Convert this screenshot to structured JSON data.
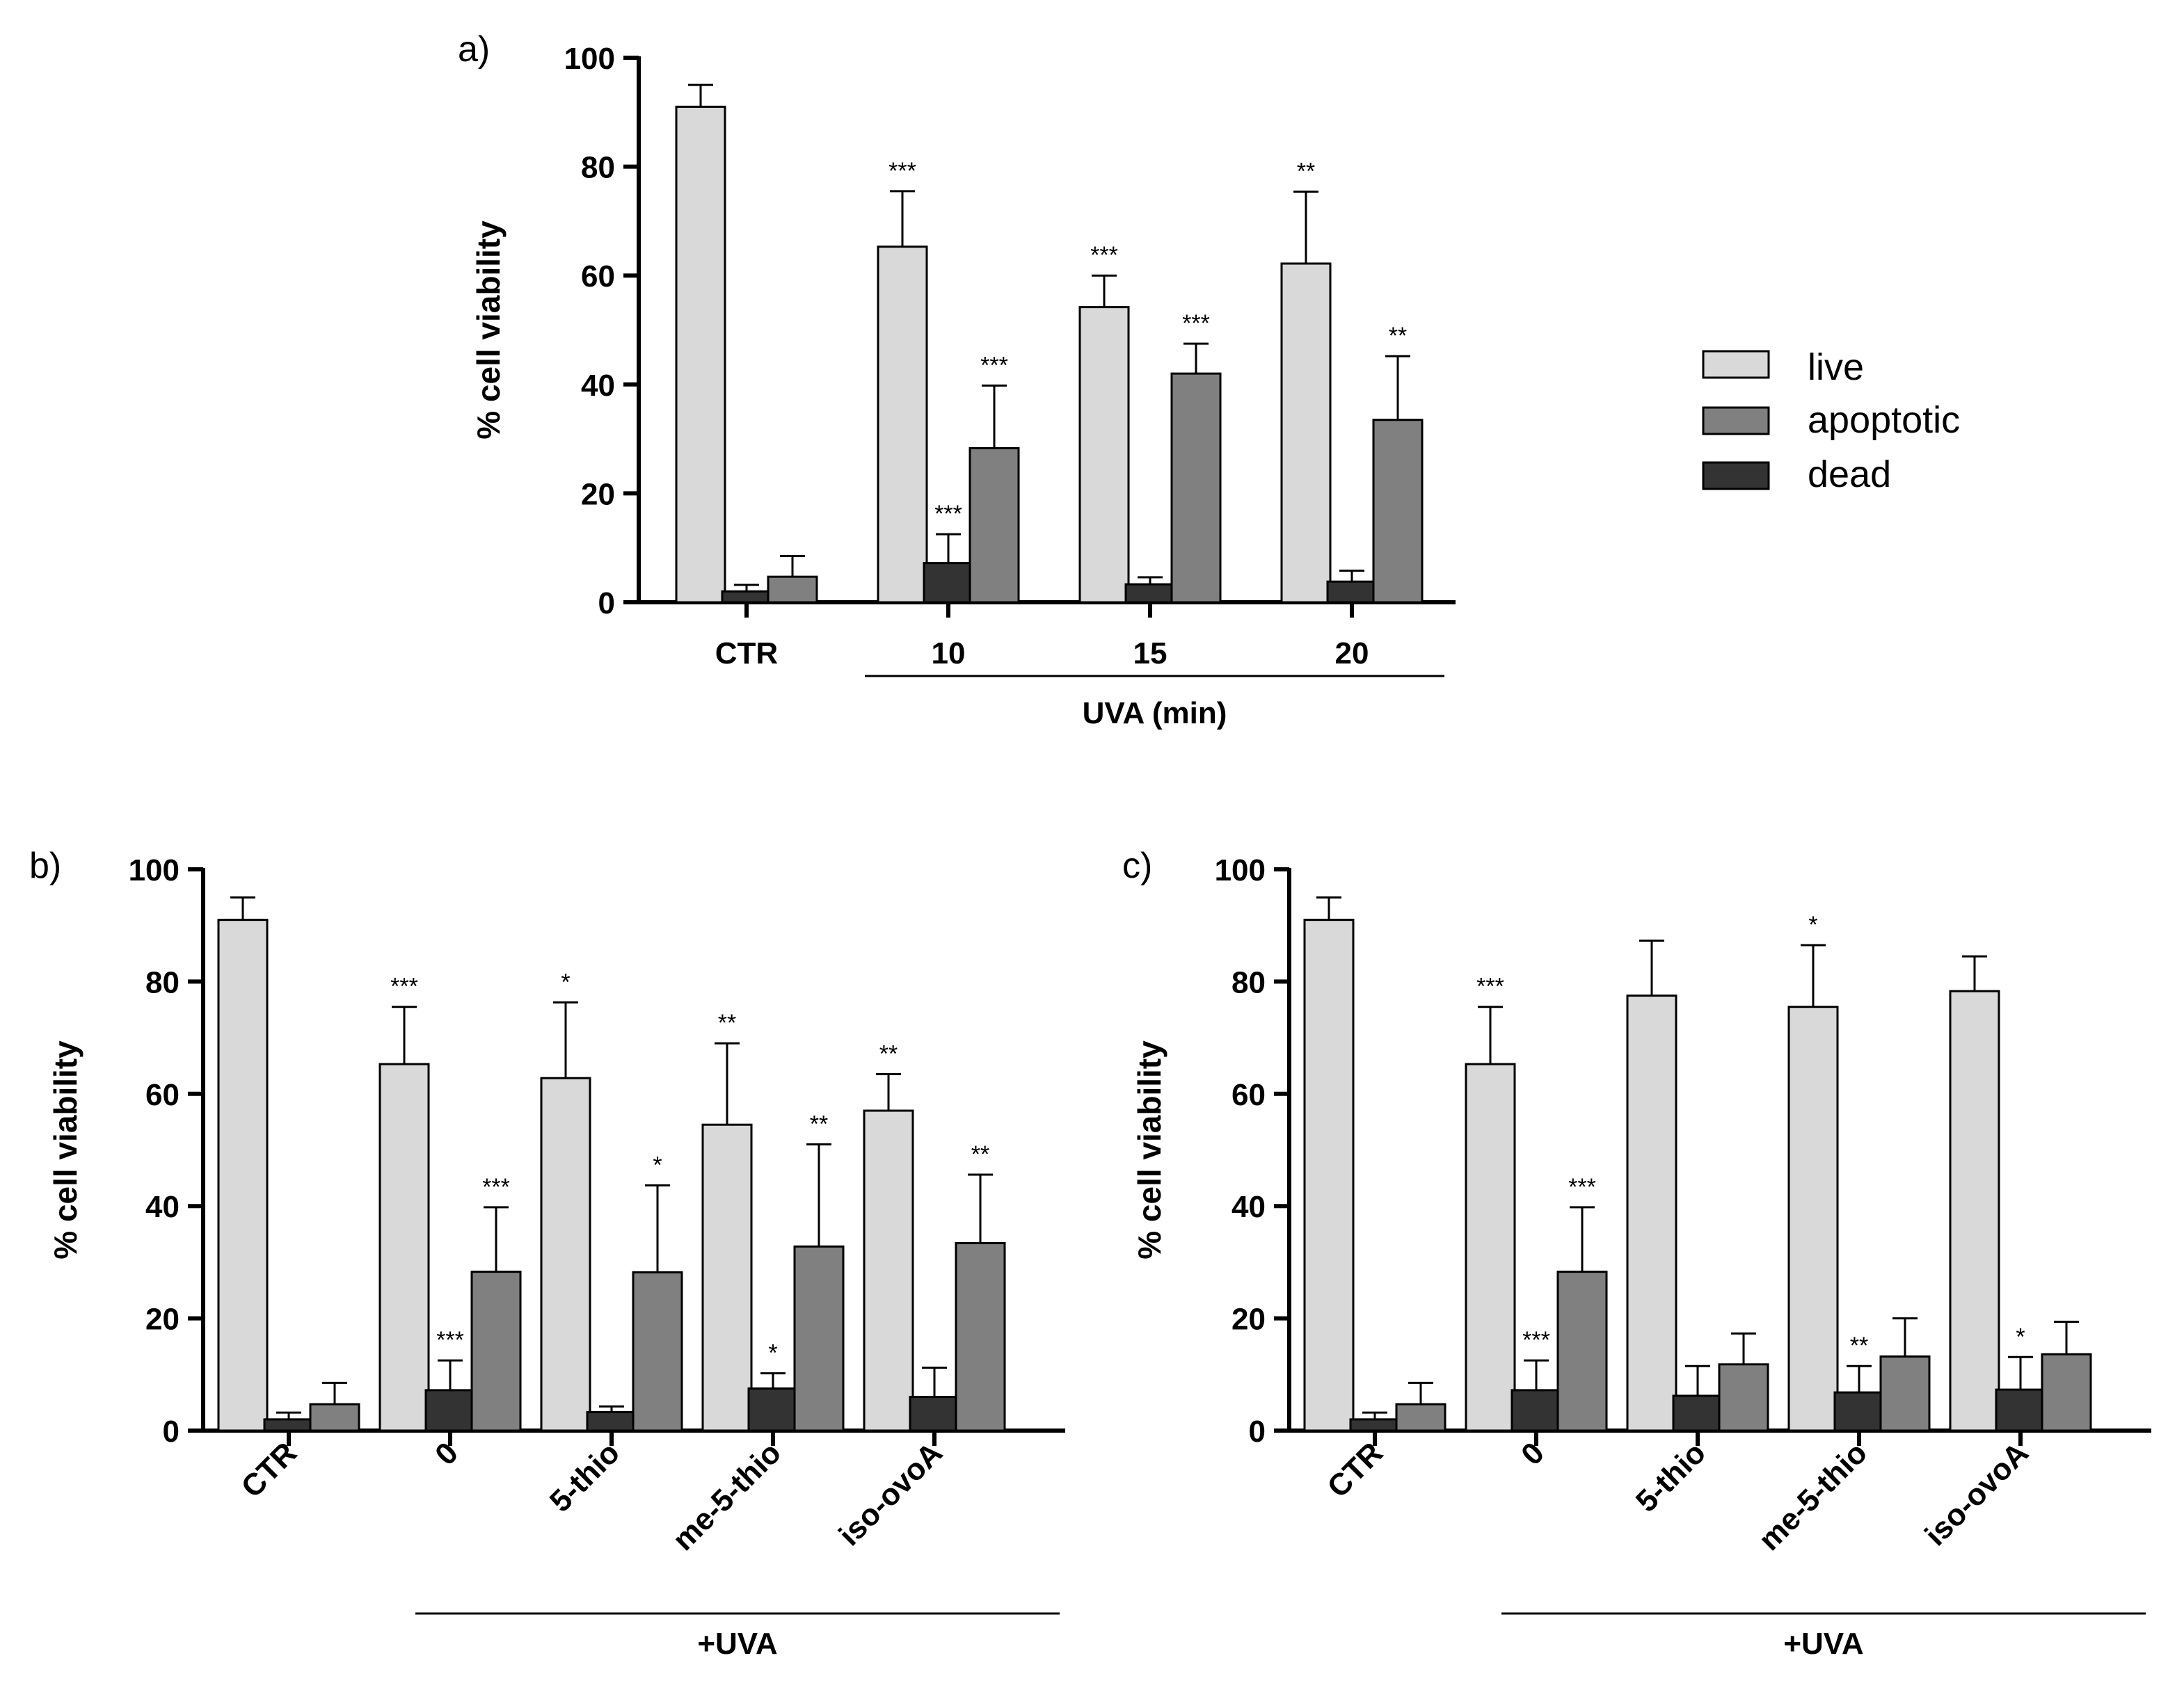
{
  "colors": {
    "live": "#d9d9d9",
    "apoptotic": "#808080",
    "dead": "#333333",
    "axis": "#000000"
  },
  "legend": {
    "items": [
      {
        "key": "live",
        "label": "live"
      },
      {
        "key": "apoptotic",
        "label": "apoptotic"
      },
      {
        "key": "dead",
        "label": "dead"
      }
    ]
  },
  "chart_data": [
    {
      "panel": "a)",
      "type": "bar",
      "ylabel": "% cell viability",
      "ylim": [
        0,
        100
      ],
      "yticks": [
        0,
        20,
        40,
        60,
        80,
        100
      ],
      "categories": [
        "CTR",
        "10",
        "15",
        "20"
      ],
      "group_label": "UVA (min)",
      "series": [
        {
          "name": "live",
          "values": [
            91,
            65.3,
            54.2,
            62.2
          ],
          "errors": [
            4.0,
            10.2,
            5.8,
            13.2
          ],
          "sig": [
            "",
            "***",
            "***",
            "**"
          ]
        },
        {
          "name": "dead",
          "values": [
            2,
            7.2,
            3.3,
            3.8
          ],
          "errors": [
            1.2,
            5.3,
            1.3,
            2.0
          ],
          "sig": [
            "",
            "***",
            "",
            ""
          ]
        },
        {
          "name": "apoptotic",
          "values": [
            4.7,
            28.3,
            42,
            33.5
          ],
          "errors": [
            3.8,
            11.5,
            5.5,
            11.7
          ],
          "sig": [
            "",
            "***",
            "***",
            "**"
          ]
        }
      ]
    },
    {
      "panel": "b)",
      "type": "bar",
      "ylabel": "% cell viability",
      "ylim": [
        0,
        100
      ],
      "yticks": [
        0,
        20,
        40,
        60,
        80,
        100
      ],
      "categories": [
        "CTR",
        "0",
        "5-thio",
        "me-5-thio",
        "iso-ovoA"
      ],
      "group_label": "+UVA",
      "series": [
        {
          "name": "live",
          "values": [
            91,
            65.3,
            62.8,
            54.5,
            57
          ],
          "errors": [
            4.0,
            10.2,
            13.5,
            14.5,
            6.5
          ],
          "sig": [
            "",
            "***",
            "*",
            "**",
            "**"
          ]
        },
        {
          "name": "dead",
          "values": [
            2,
            7.2,
            3.3,
            7.5,
            6
          ],
          "errors": [
            1.2,
            5.3,
            1.0,
            2.7,
            5.2
          ],
          "sig": [
            "",
            "***",
            "",
            "*",
            ""
          ]
        },
        {
          "name": "apoptotic",
          "values": [
            4.7,
            28.3,
            28.2,
            32.8,
            33.4
          ],
          "errors": [
            3.8,
            11.5,
            15.5,
            18.2,
            12.2
          ],
          "sig": [
            "",
            "***",
            "*",
            "**",
            "**"
          ]
        }
      ]
    },
    {
      "panel": "c)",
      "type": "bar",
      "ylabel": "% cell viability",
      "ylim": [
        0,
        100
      ],
      "yticks": [
        0,
        20,
        40,
        60,
        80,
        100
      ],
      "categories": [
        "CTR",
        "0",
        "5-thio",
        "me-5-thio",
        "iso-ovoA"
      ],
      "group_label": "+UVA",
      "series": [
        {
          "name": "live",
          "values": [
            91,
            65.3,
            77.5,
            75.5,
            78.3
          ],
          "errors": [
            4.0,
            10.2,
            9.8,
            11.0,
            6.2
          ],
          "sig": [
            "",
            "***",
            "",
            "*",
            ""
          ]
        },
        {
          "name": "dead",
          "values": [
            2,
            7.2,
            6.2,
            6.8,
            7.3
          ],
          "errors": [
            1.2,
            5.3,
            5.3,
            4.7,
            5.8
          ],
          "sig": [
            "",
            "***",
            "",
            "**",
            "*"
          ]
        },
        {
          "name": "apoptotic",
          "values": [
            4.7,
            28.3,
            11.8,
            13.2,
            13.6
          ],
          "errors": [
            3.8,
            11.5,
            5.5,
            6.8,
            5.8
          ],
          "sig": [
            "",
            "***",
            "",
            "",
            ""
          ]
        }
      ]
    }
  ]
}
